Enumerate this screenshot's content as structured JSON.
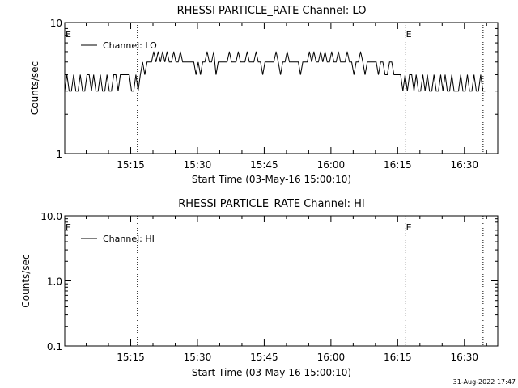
{
  "footer": {
    "timestamp": "31-Aug-2022 17:47"
  },
  "chart_data": [
    {
      "type": "line",
      "title": "RHESSI PARTICLE_RATE Channel: LO",
      "xlabel": "Start Time (03-May-16 15:00:10)",
      "ylabel": "Counts/sec",
      "yscale": "log",
      "xlim_minutes": [
        0.17,
        97.5
      ],
      "ylim": [
        1,
        10
      ],
      "xticks": [
        {
          "minute": 15,
          "label": "15:15"
        },
        {
          "minute": 30,
          "label": "15:30"
        },
        {
          "minute": 45,
          "label": "15:45"
        },
        {
          "minute": 60,
          "label": "16:00"
        },
        {
          "minute": 75,
          "label": "16:15"
        },
        {
          "minute": 90,
          "label": "16:30"
        }
      ],
      "yticks": [
        {
          "value": 1,
          "label": "1"
        },
        {
          "value": 10,
          "label": "10"
        }
      ],
      "event_lines_minutes": [
        16.5,
        76.7,
        94.2
      ],
      "event_flags": [
        {
          "minute": 0.17,
          "label": "E"
        },
        {
          "minute": 76.7,
          "label": "E"
        }
      ],
      "legend": {
        "position": "top-left",
        "entries": [
          "Channel: LO"
        ]
      },
      "grid": false,
      "series": [
        {
          "name": "Channel: LO",
          "x_start_minute": 0.17,
          "x_step_minute": 0.5,
          "values": [
            3,
            4,
            3,
            3,
            4,
            3,
            3,
            4,
            3,
            3,
            4,
            4,
            3,
            4,
            3,
            3,
            4,
            3,
            3,
            4,
            3,
            3,
            4,
            4,
            3,
            4,
            4,
            4,
            4,
            4,
            3,
            3,
            4,
            3,
            4,
            5,
            4,
            5,
            5,
            5,
            6,
            5,
            6,
            5,
            6,
            5,
            6,
            5,
            5,
            6,
            5,
            5,
            6,
            5,
            5,
            5,
            5,
            5,
            5,
            4,
            5,
            4,
            5,
            5,
            6,
            5,
            5,
            6,
            4,
            5,
            5,
            5,
            5,
            5,
            6,
            5,
            5,
            5,
            6,
            5,
            5,
            5,
            6,
            5,
            5,
            5,
            6,
            5,
            5,
            4,
            5,
            5,
            5,
            5,
            5,
            6,
            5,
            4,
            5,
            5,
            6,
            5,
            5,
            5,
            5,
            5,
            4,
            5,
            5,
            5,
            6,
            5,
            6,
            5,
            5,
            6,
            5,
            6,
            5,
            5,
            6,
            5,
            5,
            6,
            5,
            5,
            5,
            6,
            5,
            5,
            4,
            5,
            5,
            6,
            5,
            4,
            5,
            5,
            5,
            5,
            5,
            4,
            5,
            5,
            4,
            4,
            5,
            5,
            4,
            4,
            4,
            4,
            3,
            4,
            3,
            4,
            4,
            3,
            4,
            3,
            3,
            4,
            3,
            4,
            3,
            3,
            4,
            3,
            3,
            4,
            3,
            4,
            3,
            3,
            4,
            3,
            3,
            3,
            4,
            3,
            3,
            4,
            3,
            3,
            4,
            3,
            3,
            4,
            3,
            3
          ]
        }
      ]
    },
    {
      "type": "line",
      "title": "RHESSI PARTICLE_RATE Channel: HI",
      "xlabel": "Start Time (03-May-16 15:00:10)",
      "ylabel": "Counts/sec",
      "yscale": "log",
      "xlim_minutes": [
        0.17,
        97.5
      ],
      "ylim": [
        0.1,
        10
      ],
      "xticks": [
        {
          "minute": 15,
          "label": "15:15"
        },
        {
          "minute": 30,
          "label": "15:30"
        },
        {
          "minute": 45,
          "label": "15:45"
        },
        {
          "minute": 60,
          "label": "16:00"
        },
        {
          "minute": 75,
          "label": "16:15"
        },
        {
          "minute": 90,
          "label": "16:30"
        }
      ],
      "yticks": [
        {
          "value": 0.1,
          "label": "0.1"
        },
        {
          "value": 1,
          "label": "1.0"
        },
        {
          "value": 10,
          "label": "10.0"
        }
      ],
      "event_lines_minutes": [
        16.5,
        76.7,
        94.2
      ],
      "event_flags": [
        {
          "minute": 0.17,
          "label": "E"
        },
        {
          "minute": 76.7,
          "label": "E"
        }
      ],
      "legend": {
        "position": "top-left",
        "entries": [
          "Channel: HI"
        ]
      },
      "grid": false,
      "series": [
        {
          "name": "Channel: HI",
          "x_start_minute": 0.17,
          "x_step_minute": 0.5,
          "values": []
        }
      ]
    }
  ]
}
